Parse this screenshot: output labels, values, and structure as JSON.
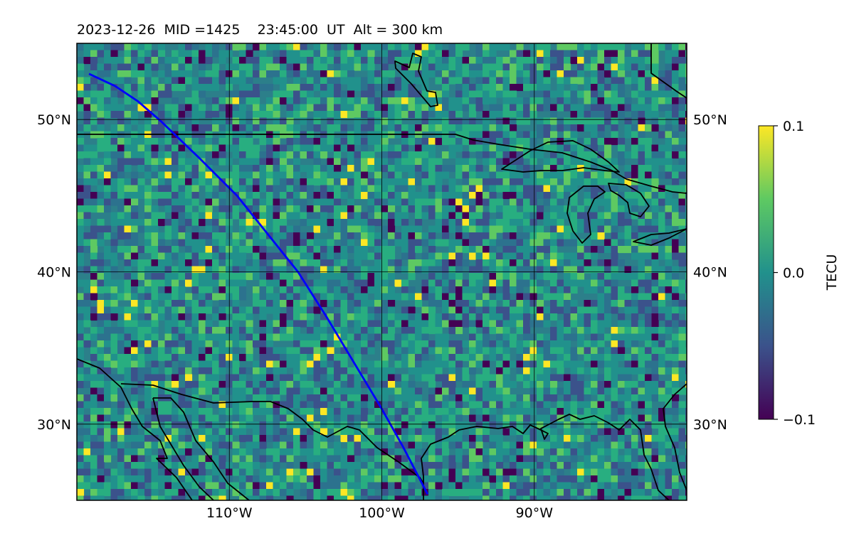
{
  "title": "2023-12-26  MID =1425    23:45:00  UT  Alt = 300 km",
  "map": {
    "lon_range": [
      -120,
      -80
    ],
    "lat_range": [
      25,
      55
    ],
    "lon_ticks": [
      {
        "value": -110,
        "label": "110°W"
      },
      {
        "value": -100,
        "label": "100°W"
      },
      {
        "value": -90,
        "label": "90°W"
      }
    ],
    "lat_ticks": [
      {
        "value": 30,
        "label": "30°N"
      },
      {
        "value": 40,
        "label": "40°N"
      },
      {
        "value": 50,
        "label": "50°N"
      }
    ],
    "gridlines": true,
    "track": {
      "color": "#0000ff",
      "points": [
        [
          -119.2,
          53.0
        ],
        [
          -117.5,
          52.2
        ],
        [
          -116.0,
          51.2
        ],
        [
          -114.5,
          49.9
        ],
        [
          -112.0,
          47.5
        ],
        [
          -109.5,
          45.0
        ],
        [
          -107.5,
          42.5
        ],
        [
          -105.5,
          40.0
        ],
        [
          -103.6,
          37.0
        ],
        [
          -101.8,
          34.0
        ],
        [
          -100.0,
          31.0
        ],
        [
          -98.6,
          28.5
        ],
        [
          -97.0,
          25.4
        ]
      ]
    }
  },
  "colorbar": {
    "label": "TECU",
    "min": -0.1,
    "max": 0.1,
    "ticks": [
      {
        "value": 0.1,
        "label": "0.1"
      },
      {
        "value": 0.0,
        "label": "0.0"
      },
      {
        "value": -0.1,
        "label": "−0.1"
      }
    ],
    "colormap": [
      "#440154",
      "#3b528b",
      "#21918c",
      "#5ec962",
      "#fde725"
    ]
  }
}
